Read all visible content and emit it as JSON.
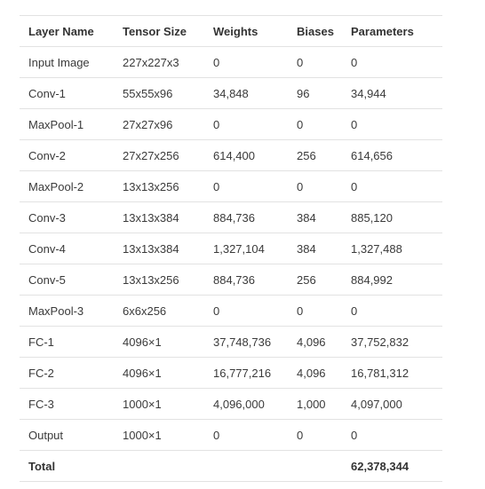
{
  "table": {
    "headers": [
      "Layer Name",
      "Tensor Size",
      "Weights",
      "Biases",
      "Parameters"
    ],
    "rows": [
      [
        "Input Image",
        "227x227x3",
        "0",
        "0",
        "0"
      ],
      [
        "Conv-1",
        "55x55x96",
        "34,848",
        "96",
        "34,944"
      ],
      [
        "MaxPool-1",
        "27x27x96",
        "0",
        "0",
        "0"
      ],
      [
        "Conv-2",
        "27x27x256",
        "614,400",
        "256",
        "614,656"
      ],
      [
        "MaxPool-2",
        "13x13x256",
        "0",
        "0",
        "0"
      ],
      [
        "Conv-3",
        "13x13x384",
        "884,736",
        "384",
        "885,120"
      ],
      [
        "Conv-4",
        "13x13x384",
        "1,327,104",
        "384",
        "1,327,488"
      ],
      [
        "Conv-5",
        "13x13x256",
        "884,736",
        "256",
        "884,992"
      ],
      [
        "MaxPool-3",
        "6x6x256",
        "0",
        "0",
        "0"
      ],
      [
        "FC-1",
        "4096×1",
        "37,748,736",
        "4,096",
        "37,752,832"
      ],
      [
        "FC-2",
        "4096×1",
        "16,777,216",
        "4,096",
        "16,781,312"
      ],
      [
        "FC-3",
        "1000×1",
        "4,096,000",
        "1,000",
        "4,097,000"
      ],
      [
        "Output",
        "1000×1",
        "0",
        "0",
        "0"
      ]
    ],
    "total": {
      "label": "Total",
      "tensor_size": "",
      "weights": "",
      "biases": "",
      "parameters": "62,378,344"
    }
  },
  "colors": {
    "text": "#333333",
    "border": "#e2e2e2",
    "background": "#ffffff"
  }
}
